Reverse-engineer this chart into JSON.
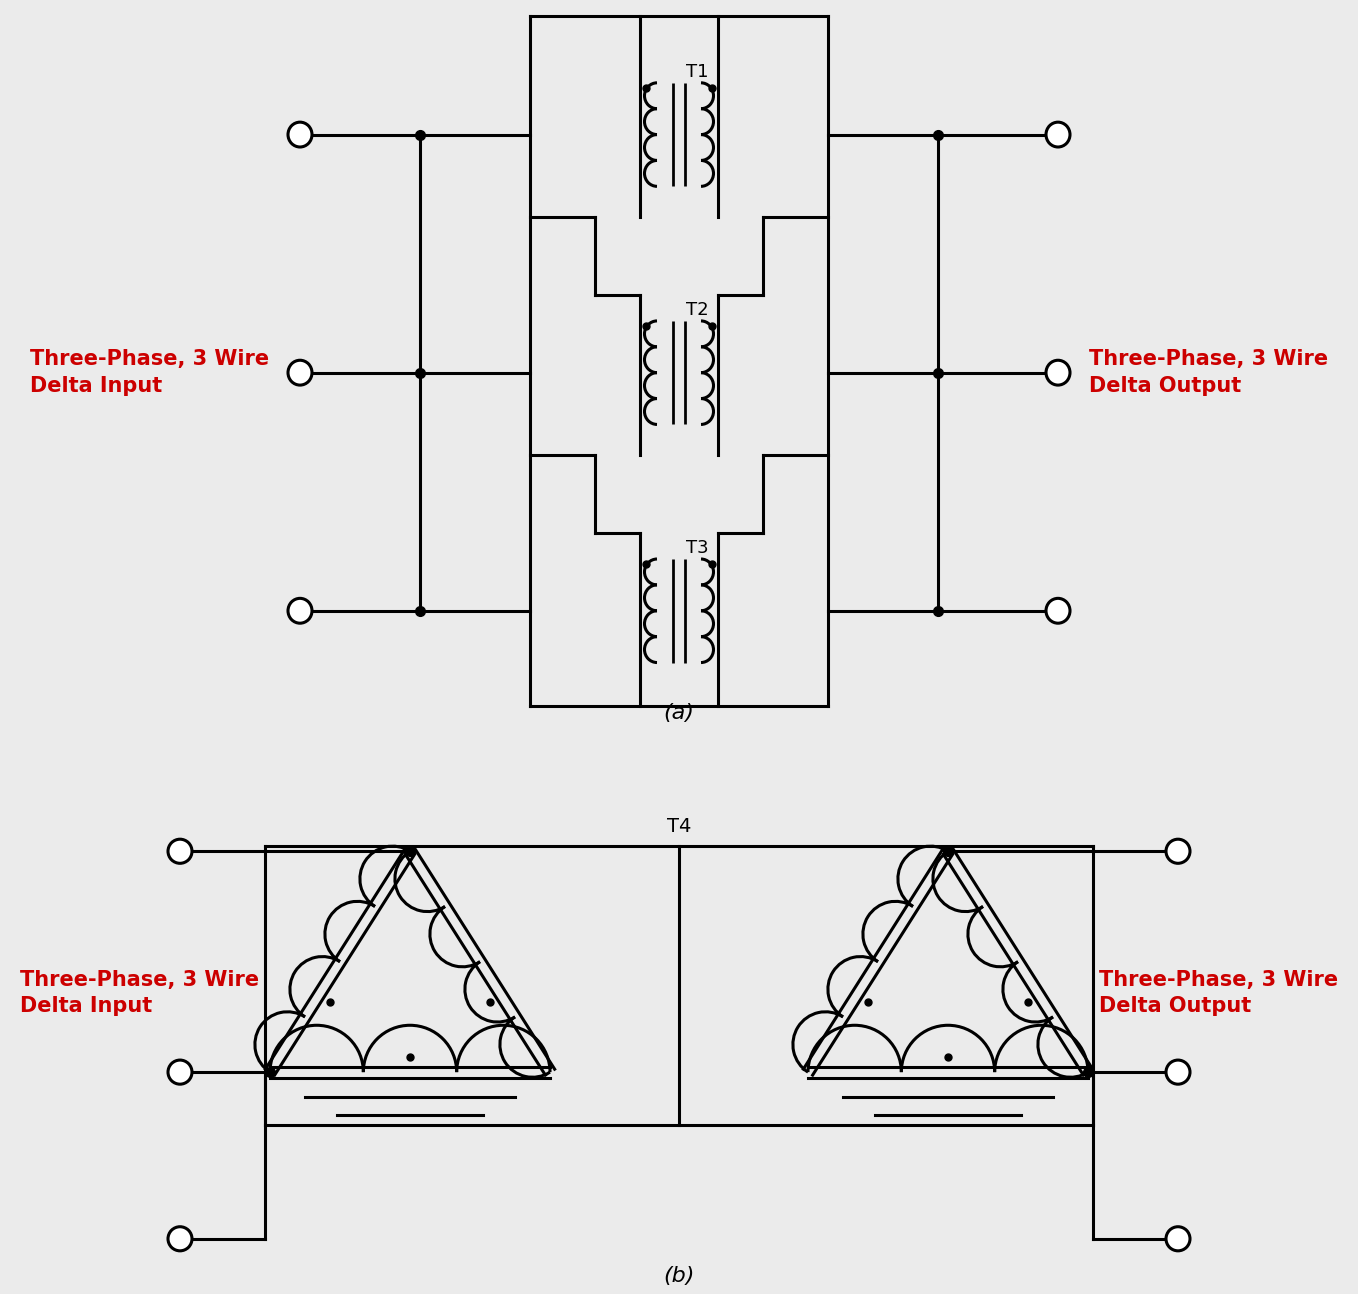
{
  "bg_color": "#ebebeb",
  "line_color": "#000000",
  "text_color_red": "#cc0000",
  "lw": 2.2,
  "title_a": "(a)",
  "title_b": "(b)",
  "label_input_a": "Three-Phase, 3 Wire\nDelta Input",
  "label_output_a": "Three-Phase, 3 Wire\nDelta Output",
  "label_input_b": "Three-Phase, 3 Wire\nDelta Input",
  "label_output_b": "Three-Phase, 3 Wire\nDelta Output",
  "t1_label": "T1",
  "t2_label": "T2",
  "t3_label": "T3",
  "t4_label": "T4"
}
